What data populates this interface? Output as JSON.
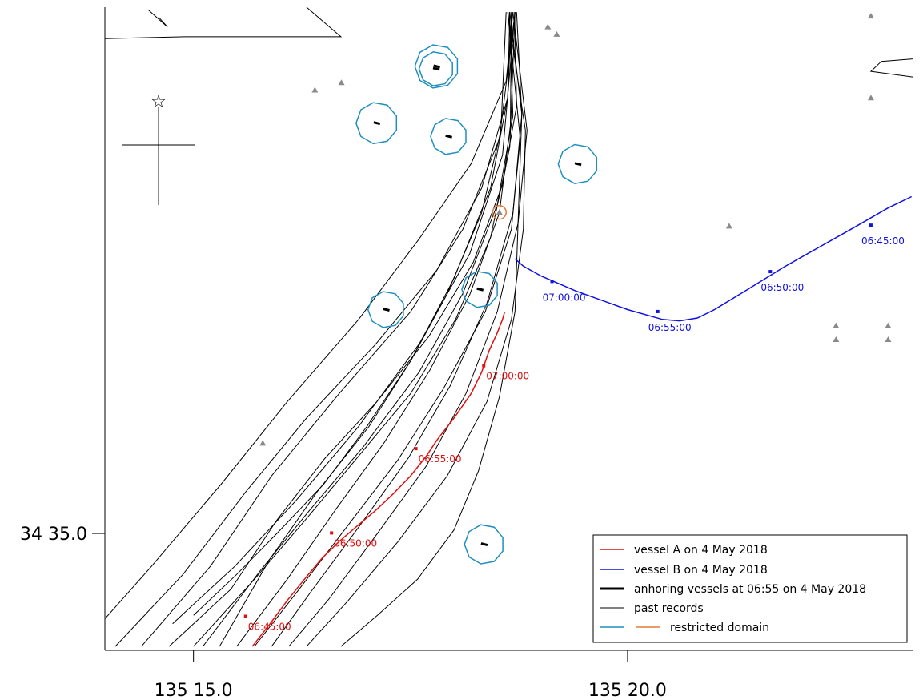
{
  "chart_data": {
    "type": "map-trajectory",
    "x_axis": {
      "range": [
        135.233,
        135.388
      ],
      "ticks": [
        {
          "value": 135.25,
          "label": "135 15.0"
        },
        {
          "value": 135.3333,
          "label": "135 20.0"
        }
      ]
    },
    "y_axis": {
      "range": [
        34.5596,
        34.69
      ],
      "ticks": [
        {
          "value": 34.5833,
          "label": "34 35.0"
        }
      ]
    },
    "colors": {
      "vessel_a": "#e01010",
      "vessel_b": "#1010e0",
      "past": "#000000",
      "anchor": "#000000",
      "domain": "#1f8fbf",
      "domain_alt": "#e07b39",
      "marker": "#8a8a8a"
    },
    "vessel_a": {
      "name": "vessel A on 4 May 2018",
      "track": [
        [
          135.2613,
          34.5604
        ],
        [
          135.2647,
          34.565
        ],
        [
          135.268,
          34.5697
        ],
        [
          135.2713,
          34.574
        ],
        [
          135.2747,
          34.5783
        ],
        [
          135.278,
          34.5817
        ],
        [
          135.2813,
          34.5847
        ],
        [
          135.285,
          34.588
        ],
        [
          135.2883,
          34.5913
        ],
        [
          135.2917,
          34.595
        ],
        [
          135.2947,
          34.599
        ],
        [
          135.2967,
          34.6022
        ],
        [
          135.3,
          34.6067
        ],
        [
          135.3033,
          34.6117
        ],
        [
          135.3053,
          34.616
        ],
        [
          135.3067,
          34.6203
        ],
        [
          135.3083,
          34.624
        ],
        [
          135.3093,
          34.6267
        ],
        [
          135.3097,
          34.6282
        ]
      ],
      "times": [
        {
          "x": 135.26,
          "y": 34.5665,
          "label": "06:45:00"
        },
        {
          "x": 135.2765,
          "y": 34.5834,
          "label": "06:50:00"
        },
        {
          "x": 135.2927,
          "y": 34.6005,
          "label": "06:55:00"
        },
        {
          "x": 135.3057,
          "y": 34.6173,
          "label": "07:00:00"
        }
      ]
    },
    "vessel_b": {
      "name": "vessel B on 4 May 2018",
      "track": [
        [
          135.3878,
          34.6516
        ],
        [
          135.3833,
          34.6493
        ],
        [
          135.3767,
          34.6453
        ],
        [
          135.37,
          34.6413
        ],
        [
          135.3633,
          34.6373
        ],
        [
          135.3567,
          34.633
        ],
        [
          135.35,
          34.6287
        ],
        [
          135.3467,
          34.627
        ],
        [
          135.3433,
          34.6264
        ],
        [
          135.34,
          34.6267
        ],
        [
          135.3333,
          34.6287
        ],
        [
          135.3233,
          34.6325
        ],
        [
          135.3167,
          34.6355
        ],
        [
          135.3133,
          34.6375
        ],
        [
          135.3117,
          34.639
        ]
      ],
      "times": [
        {
          "x": 135.38,
          "y": 34.6458,
          "label": "06:45:00"
        },
        {
          "x": 135.3607,
          "y": 34.6364,
          "label": "06:50:00"
        },
        {
          "x": 135.3391,
          "y": 34.6283,
          "label": "06:55:00"
        },
        {
          "x": 135.3188,
          "y": 34.6344,
          "label": "07:00:00"
        }
      ]
    },
    "anchored_vessels": [
      {
        "x": 135.2966,
        "y": 34.6775,
        "r": 0.0033
      },
      {
        "x": 135.2967,
        "y": 34.678,
        "r": 0.0042
      },
      {
        "x": 135.2852,
        "y": 34.6665,
        "r": 0.004
      },
      {
        "x": 135.299,
        "y": 34.6638,
        "r": 0.0035
      },
      {
        "x": 135.3238,
        "y": 34.6582,
        "r": 0.0038
      },
      {
        "x": 135.305,
        "y": 34.6328,
        "r": 0.0035
      },
      {
        "x": 135.287,
        "y": 34.6287,
        "r": 0.0035
      },
      {
        "x": 135.3058,
        "y": 34.5811,
        "r": 0.0038
      }
    ],
    "orange_domain": {
      "x": 135.3087,
      "y": 34.6484,
      "r": 0.0013
    },
    "markers": [
      [
        135.318,
        34.686
      ],
      [
        135.3197,
        34.6845
      ],
      [
        135.2733,
        34.6732
      ],
      [
        135.2784,
        34.6747
      ],
      [
        135.2633,
        34.6016
      ],
      [
        135.3528,
        34.6456
      ],
      [
        135.38,
        34.6882
      ],
      [
        135.38,
        34.6716
      ],
      [
        135.3733,
        34.6254
      ],
      [
        135.3833,
        34.6254
      ],
      [
        135.3733,
        34.6226
      ],
      [
        135.3833,
        34.6226
      ]
    ],
    "landmark": {
      "x": 135.2433,
      "y": 34.671,
      "label": "☆"
    },
    "past_records": [
      [
        [
          135.2453,
          34.5604
        ],
        [
          135.2572,
          34.572
        ],
        [
          135.266,
          34.586
        ],
        [
          135.2752,
          34.5985
        ],
        [
          135.2852,
          34.61
        ],
        [
          135.2952,
          34.6233
        ],
        [
          135.3037,
          34.6383
        ],
        [
          135.3093,
          34.654
        ],
        [
          135.312,
          34.67
        ],
        [
          135.3116,
          34.689
        ]
      ],
      [
        [
          135.2518,
          34.5604
        ],
        [
          135.263,
          34.576
        ],
        [
          135.2723,
          34.588
        ],
        [
          135.2827,
          34.601
        ],
        [
          135.2933,
          34.616
        ],
        [
          135.3017,
          34.632
        ],
        [
          135.3083,
          34.65
        ],
        [
          135.3113,
          34.668
        ],
        [
          135.3106,
          34.689
        ]
      ],
      [
        [
          135.255,
          34.5604
        ],
        [
          135.2646,
          34.578
        ],
        [
          135.2737,
          34.5917
        ],
        [
          135.2837,
          34.605
        ],
        [
          135.2917,
          34.6183
        ],
        [
          135.2986,
          34.6317
        ],
        [
          135.3053,
          34.6483
        ],
        [
          135.309,
          34.665
        ],
        [
          135.31,
          34.689
        ]
      ],
      [
        [
          135.2583,
          34.5604
        ],
        [
          135.268,
          34.574
        ],
        [
          135.2772,
          34.588
        ],
        [
          135.2866,
          34.6017
        ],
        [
          135.2953,
          34.6163
        ],
        [
          135.303,
          34.6317
        ],
        [
          135.3087,
          34.6483
        ],
        [
          135.3108,
          34.666
        ],
        [
          135.311,
          34.689
        ]
      ],
      [
        [
          135.2617,
          34.5604
        ],
        [
          135.2703,
          34.572
        ],
        [
          135.2797,
          34.585
        ],
        [
          135.2893,
          34.5983
        ],
        [
          135.298,
          34.6127
        ],
        [
          135.306,
          34.6283
        ],
        [
          135.311,
          34.645
        ],
        [
          135.3127,
          34.6633
        ],
        [
          135.3103,
          34.689
        ]
      ],
      [
        [
          135.265,
          34.5604
        ],
        [
          135.2727,
          34.5717
        ],
        [
          135.282,
          34.585
        ],
        [
          135.2913,
          34.5987
        ],
        [
          135.2993,
          34.6133
        ],
        [
          135.3063,
          34.63
        ],
        [
          135.3113,
          34.6483
        ],
        [
          135.313,
          34.6683
        ],
        [
          135.312,
          34.689
        ]
      ],
      [
        [
          135.2683,
          34.5604
        ],
        [
          135.276,
          34.57
        ],
        [
          135.2853,
          34.5833
        ],
        [
          135.2947,
          34.597
        ],
        [
          135.3023,
          34.6117
        ],
        [
          135.3083,
          34.6283
        ],
        [
          135.3123,
          34.6463
        ],
        [
          135.314,
          34.665
        ],
        [
          135.3113,
          34.689
        ]
      ],
      [
        [
          135.2717,
          34.5604
        ],
        [
          135.2797,
          34.5697
        ],
        [
          135.2893,
          34.5817
        ],
        [
          135.2987,
          34.595
        ],
        [
          135.3063,
          34.61
        ],
        [
          135.311,
          34.6267
        ],
        [
          135.3133,
          34.645
        ],
        [
          135.3137,
          34.665
        ],
        [
          135.3103,
          34.689
        ]
      ],
      [
        [
          135.2783,
          34.5604
        ],
        [
          135.2853,
          34.5667
        ],
        [
          135.293,
          34.574
        ],
        [
          135.3,
          34.584
        ],
        [
          135.3047,
          34.596
        ],
        [
          135.3087,
          34.611
        ],
        [
          135.3117,
          34.6283
        ],
        [
          135.3123,
          34.6467
        ],
        [
          135.313,
          34.6683
        ],
        [
          135.3107,
          34.689
        ]
      ],
      [
        [
          135.235,
          34.5604
        ],
        [
          135.248,
          34.575
        ],
        [
          135.26,
          34.5917
        ],
        [
          135.2717,
          34.6067
        ],
        [
          135.285,
          34.6217
        ],
        [
          135.2967,
          34.6367
        ],
        [
          135.3053,
          34.6533
        ],
        [
          135.3103,
          34.6717
        ],
        [
          135.311,
          34.689
        ]
      ],
      [
        [
          135.24,
          34.5604
        ],
        [
          135.2533,
          34.5767
        ],
        [
          135.265,
          34.595
        ],
        [
          135.278,
          34.6117
        ],
        [
          135.2917,
          34.6283
        ],
        [
          135.3017,
          34.645
        ],
        [
          135.3087,
          34.6633
        ],
        [
          135.3117,
          34.689
        ]
      ],
      [
        [
          135.25,
          34.5604
        ],
        [
          135.2617,
          34.574
        ],
        [
          135.272,
          34.5867
        ],
        [
          135.2817,
          34.599
        ],
        [
          135.2917,
          34.6117
        ],
        [
          135.3003,
          34.6267
        ],
        [
          135.307,
          34.6433
        ],
        [
          135.3107,
          34.6617
        ],
        [
          135.3117,
          34.689
        ]
      ],
      [
        [
          135.2283,
          34.5604
        ],
        [
          135.242,
          34.5767
        ],
        [
          135.2553,
          34.5933
        ],
        [
          135.268,
          34.61
        ],
        [
          135.2817,
          34.6267
        ],
        [
          135.2933,
          34.643
        ],
        [
          135.3033,
          34.6583
        ],
        [
          135.31,
          34.675
        ],
        [
          135.3113,
          34.689
        ]
      ],
      [
        [
          135.25,
          34.5667
        ],
        [
          135.2583,
          34.575
        ],
        [
          135.266,
          34.5833
        ],
        [
          135.275,
          34.5933
        ],
        [
          135.2833,
          34.605
        ],
        [
          135.2917,
          34.6183
        ],
        [
          135.3,
          34.635
        ],
        [
          135.307,
          34.6533
        ],
        [
          135.3103,
          34.6717
        ],
        [
          135.3107,
          34.689
        ]
      ],
      [
        [
          135.246,
          34.565
        ],
        [
          135.258,
          34.5767
        ],
        [
          135.2697,
          34.59
        ],
        [
          135.2817,
          34.605
        ],
        [
          135.2933,
          34.6217
        ],
        [
          135.303,
          34.64
        ],
        [
          135.3093,
          34.66
        ],
        [
          135.3117,
          34.689
        ]
      ]
    ],
    "structures": [
      [
        [
          135.22,
          34.6833
        ],
        [
          135.2483,
          34.684
        ],
        [
          135.2783,
          34.684
        ],
        [
          135.2717,
          34.69
        ]
      ],
      [
        [
          135.2413,
          34.6895
        ],
        [
          135.245,
          34.686
        ],
        [
          135.2433,
          34.688
        ]
      ],
      [
        [
          135.394,
          34.68
        ],
        [
          135.382,
          34.679
        ],
        [
          135.38,
          34.677
        ],
        [
          135.394,
          34.675
        ]
      ]
    ],
    "legend": {
      "items": [
        {
          "label": "vessel A on 4 May 2018",
          "kind": "vessel_a"
        },
        {
          "label": "vessel B on 4 May 2018",
          "kind": "vessel_b"
        },
        {
          "label": "anhoring vessels at 06:55 on 4 May 2018",
          "kind": "anchor"
        },
        {
          "label": "past records",
          "kind": "past"
        },
        {
          "label": "restricted domain",
          "kind": "domain"
        }
      ]
    }
  }
}
